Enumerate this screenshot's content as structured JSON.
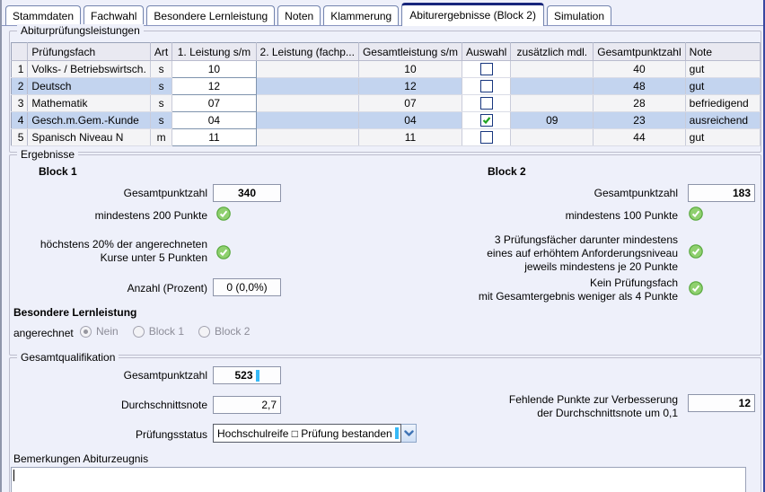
{
  "tabs": [
    {
      "label": "Stammdaten",
      "active": false
    },
    {
      "label": "Fachwahl",
      "active": false
    },
    {
      "label": "Besondere Lernleistung",
      "active": false
    },
    {
      "label": "Noten",
      "active": false
    },
    {
      "label": "Klammerung",
      "active": false
    },
    {
      "label": "Abiturergebnisse (Block 2)",
      "active": true
    },
    {
      "label": "Simulation",
      "active": false
    }
  ],
  "exam_table": {
    "group_label": "Abiturprüfungsleistungen",
    "columns": [
      "",
      "Prüfungsfach",
      "Art",
      "1. Leistung s/m",
      "2. Leistung (fachp...",
      "Gesamtleistung s/m",
      "Auswahl",
      "zusätzlich mdl.",
      "Gesamtpunktzahl",
      "Note"
    ],
    "rows": [
      {
        "num": "1",
        "fach": "Volks- / Betriebswirtsch.",
        "art": "s",
        "leistung1": "10",
        "leistung2": "",
        "gesamt": "10",
        "auswahl": false,
        "zusatz": "",
        "punkte": "40",
        "note": "gut"
      },
      {
        "num": "2",
        "fach": "Deutsch",
        "art": "s",
        "leistung1": "12",
        "leistung2": "",
        "gesamt": "12",
        "auswahl": false,
        "zusatz": "",
        "punkte": "48",
        "note": "gut"
      },
      {
        "num": "3",
        "fach": "Mathematik",
        "art": "s",
        "leistung1": "07",
        "leistung2": "",
        "gesamt": "07",
        "auswahl": false,
        "zusatz": "",
        "punkte": "28",
        "note": "befriedigend"
      },
      {
        "num": "4",
        "fach": "Gesch.m.Gem.-Kunde",
        "art": "s",
        "leistung1": "04",
        "leistung2": "",
        "gesamt": "04",
        "auswahl": true,
        "zusatz": "09",
        "punkte": "23",
        "note": "ausreichend"
      },
      {
        "num": "5",
        "fach": "Spanisch Niveau N",
        "art": "m",
        "leistung1": "11",
        "leistung2": "",
        "gesamt": "11",
        "auswahl": false,
        "zusatz": "",
        "punkte": "44",
        "note": "gut"
      }
    ]
  },
  "ergebnisse": {
    "group_label": "Ergebnisse",
    "block1": {
      "title": "Block 1",
      "points_label": "Gesamtpunktzahl",
      "points_value": "340",
      "check1_label": "mindestens 200 Punkte",
      "check2_label": "höchstens 20% der angerechneten\nKurse unter 5 Punkten",
      "anzahl_label": "Anzahl (Prozent)",
      "anzahl_value": "0 (0,0%)"
    },
    "block2": {
      "title": "Block 2",
      "points_label": "Gesamtpunktzahl",
      "points_value": "183",
      "check1_label": "mindestens 100 Punkte",
      "check2_label": "3 Prüfungsfächer darunter mindestens\neines auf erhöhtem Anforderungsniveau\njeweils mindestens je 20 Punkte",
      "check3_label": "Kein Prüfungsfach\nmit Gesamtergebnis weniger als 4 Punkte"
    },
    "besondere_lernleistung": {
      "title": "Besondere Lernleistung",
      "label": "angerechnet",
      "options": [
        {
          "label": "Nein",
          "selected": true
        },
        {
          "label": "Block 1",
          "selected": false
        },
        {
          "label": "Block 2",
          "selected": false
        }
      ]
    }
  },
  "gesamtqualifikation": {
    "group_label": "Gesamtqualifikation",
    "points_label": "Gesamtpunktzahl",
    "points_value": "523",
    "durchschnittsnote_label": "Durchschnittsnote",
    "durchschnittsnote_value": "2,7",
    "pruefungsstatus_label": "Prüfungsstatus",
    "pruefungsstatus_value": "Hochschulreife □ Prüfung bestanden",
    "fehlende_label": "Fehlende Punkte zur Verbesserung\nder Durchschnittsnote um 0,1",
    "fehlende_value": "12",
    "bemerkungen_label": "Bemerkungen Abiturzeugnis",
    "bemerkungen_value": ""
  },
  "icons": {
    "success": "green-check-circle",
    "dropdown": "chevron-down",
    "checkbox_checked": "green-checkmark"
  },
  "colors": {
    "background": "#eef0fa",
    "active_tab_accent": "#18267c",
    "row_highlight": "#c3d4ef",
    "caret_blue": "#36b9f7",
    "check_green": "#57a83c"
  }
}
